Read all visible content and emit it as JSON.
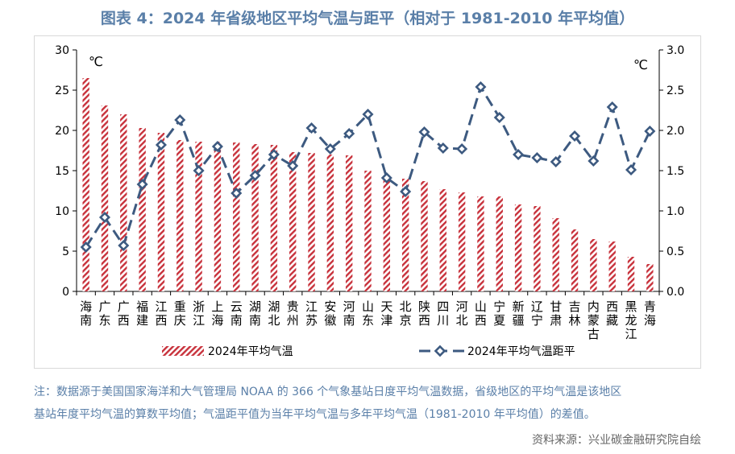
{
  "title": "图表 4：2024 年省级地区平均气温与距平（相对于 1981-2010 年平均值）",
  "note_line1": "注：数据源于美国国家海洋和大气管理局 NOAA 的 366 个气象基站日度平均气温数据，省级地区的平均气温是该地区",
  "note_line2": "基站年度平均气温的算数平均值；气温距平值为当年平均气温与多年平均气温（1981-2010 年平均值）的差值。",
  "source": "资料来源：兴业碳金融研究院自绘",
  "colors": {
    "bar": "#c8323c",
    "line": "#3d5a80"
  },
  "chart_data": {
    "type": "bar",
    "categories": [
      "海南",
      "广东",
      "广西",
      "福建",
      "江西",
      "重庆",
      "浙江",
      "上海",
      "云南",
      "湖南",
      "湖北",
      "贵州",
      "江苏",
      "安徽",
      "河南",
      "山东",
      "天津",
      "北京",
      "陕西",
      "四川",
      "河北",
      "山西",
      "宁夏",
      "新疆",
      "辽宁",
      "甘肃",
      "吉林",
      "内蒙古",
      "西藏",
      "黑龙江",
      "青海"
    ],
    "left_unit": "℃",
    "right_unit": "℃",
    "left_ylim": [
      0,
      30
    ],
    "left_ticks": [
      "0",
      "5",
      "10",
      "15",
      "20",
      "25",
      "30"
    ],
    "right_ylim": [
      0,
      3
    ],
    "right_ticks": [
      "0.0",
      "0.5",
      "1.0",
      "1.5",
      "2.0",
      "2.5",
      "3.0"
    ],
    "series": [
      {
        "name": "2024年平均气温",
        "kind": "bar",
        "axis": "left",
        "values": [
          26.5,
          23.1,
          22.0,
          20.3,
          19.7,
          18.8,
          18.6,
          18.6,
          18.5,
          18.3,
          18.2,
          17.3,
          17.2,
          17.0,
          16.9,
          15.0,
          14.2,
          14.0,
          13.7,
          12.7,
          12.3,
          11.8,
          11.8,
          10.8,
          10.6,
          9.1,
          7.7,
          6.5,
          6.2,
          4.3,
          3.4
        ]
      },
      {
        "name": "2024年平均气温距平",
        "kind": "line",
        "axis": "right",
        "values": [
          0.55,
          0.92,
          0.57,
          1.33,
          1.82,
          2.13,
          1.5,
          1.8,
          1.22,
          1.44,
          1.7,
          1.56,
          2.03,
          1.77,
          1.96,
          2.2,
          1.41,
          1.24,
          1.98,
          1.78,
          1.77,
          2.54,
          2.16,
          1.7,
          1.66,
          1.61,
          1.93,
          1.62,
          2.29,
          1.51,
          1.99
        ]
      }
    ]
  }
}
